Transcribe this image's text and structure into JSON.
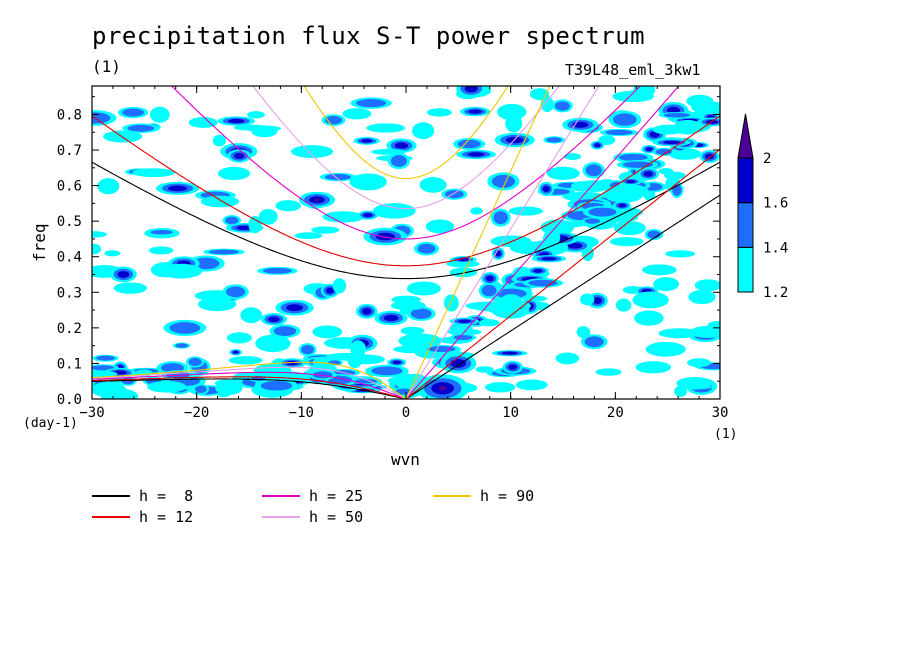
{
  "chart_data": {
    "type": "heatmap",
    "title": "precipitation flux S-T power spectrum",
    "units_label": "(1)",
    "run_name": "T39L48_eml_3kw1",
    "xlabel": "wvn",
    "ylabel": "freq",
    "x_units": "(1)",
    "y_units": "(day-1)",
    "xlim": [
      -30,
      30
    ],
    "ylim": [
      0,
      0.88
    ],
    "x_ticks": [
      -30,
      -20,
      -10,
      0,
      10,
      20,
      30
    ],
    "x_tick_labels": [
      "-30",
      "-20",
      "-10",
      "0",
      "10",
      "20",
      "30"
    ],
    "y_ticks": [
      0.0,
      0.1,
      0.2,
      0.3,
      0.4,
      0.5,
      0.6,
      0.7,
      0.8
    ],
    "y_tick_labels": [
      "0.0",
      "0.1",
      "0.2",
      "0.3",
      "0.4",
      "0.5",
      "0.6",
      "0.7",
      "0.8"
    ],
    "contour_levels": [
      1.2,
      1.4,
      1.6,
      2
    ],
    "colorbar_labels": [
      "1.2",
      "1.4",
      "1.6",
      "2"
    ],
    "colorbar_colors": [
      "#00ffff",
      "#1e6eff",
      "#0000cc",
      "#4b0096"
    ],
    "dispersion_curves": [
      {
        "label": "h =  8",
        "h": 8,
        "color": "#000000"
      },
      {
        "label": "h = 12",
        "h": 12,
        "color": "#e00000"
      },
      {
        "label": "h = 25",
        "h": 25,
        "color": "#e000c8"
      },
      {
        "label": "h = 50",
        "h": 50,
        "color": "#e8a0e8"
      },
      {
        "label": "h = 90",
        "h": 90,
        "color": "#f0c800"
      }
    ]
  }
}
